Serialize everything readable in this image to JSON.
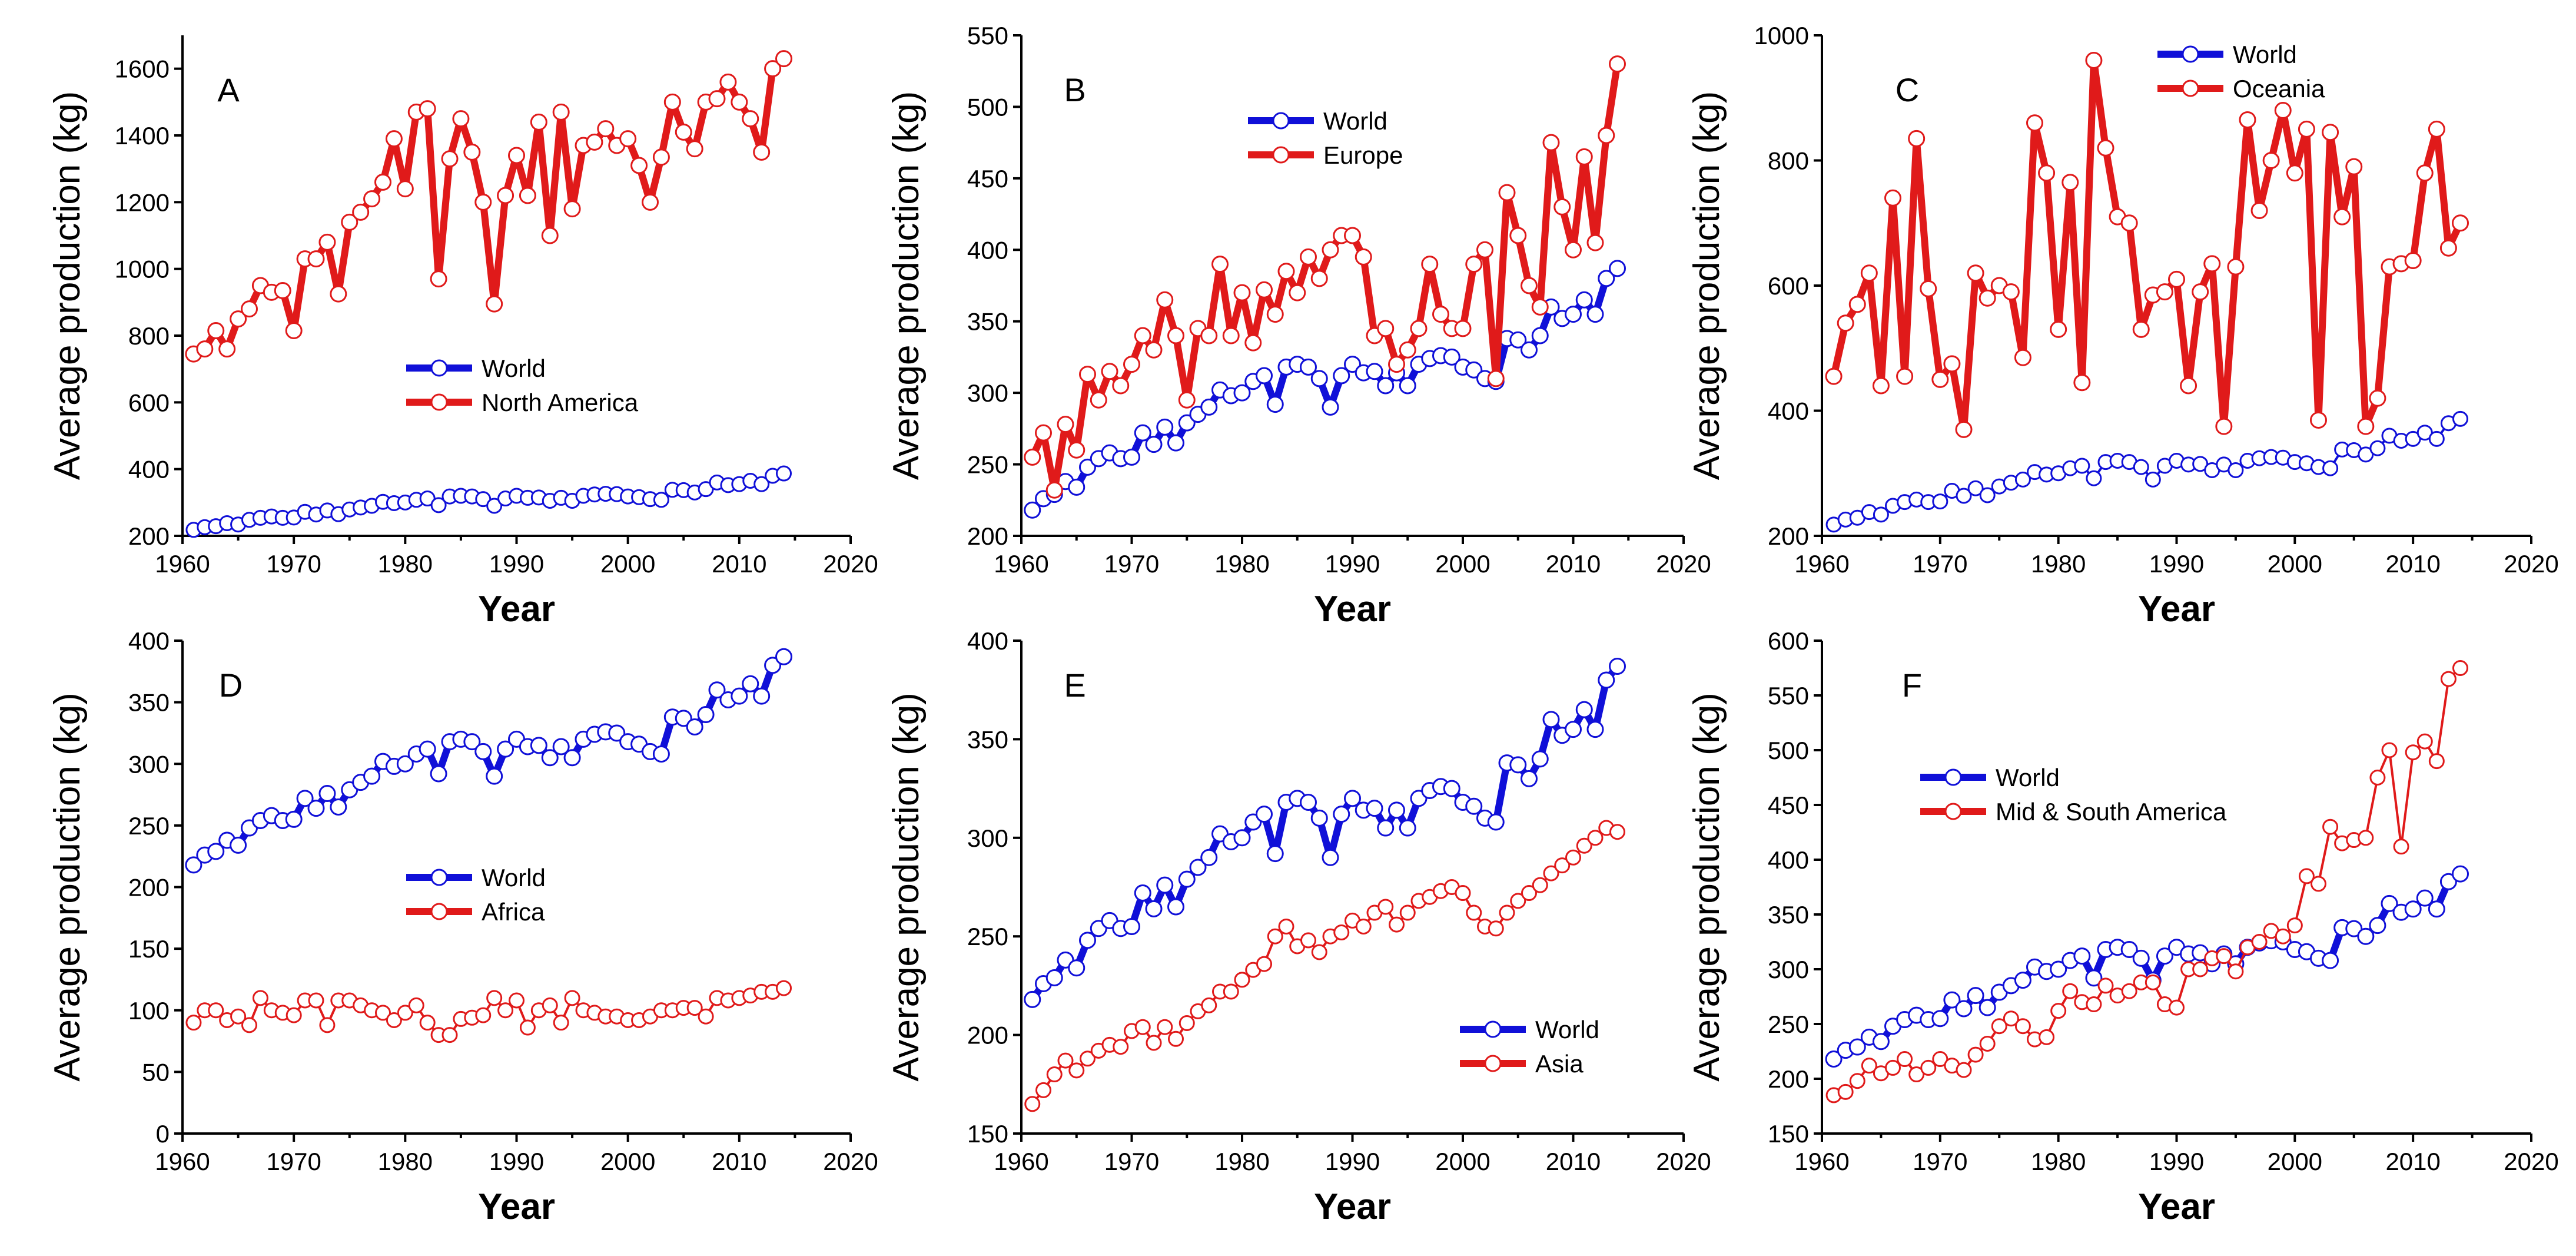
{
  "colors": {
    "world": "#1010d8",
    "region": "#e01a1a"
  },
  "x_label": "Year",
  "y_label": "Average production (kg)",
  "world_series": {
    "name": "World",
    "years": [
      1961,
      1962,
      1963,
      1964,
      1965,
      1966,
      1967,
      1968,
      1969,
      1970,
      1971,
      1972,
      1973,
      1974,
      1975,
      1976,
      1977,
      1978,
      1979,
      1980,
      1981,
      1982,
      1983,
      1984,
      1985,
      1986,
      1987,
      1988,
      1989,
      1990,
      1991,
      1992,
      1993,
      1994,
      1995,
      1996,
      1997,
      1998,
      1999,
      2000,
      2001,
      2002,
      2003,
      2004,
      2005,
      2006,
      2007,
      2008,
      2009,
      2010,
      2011,
      2012,
      2013,
      2014
    ],
    "values": [
      218,
      226,
      229,
      238,
      234,
      248,
      254,
      258,
      254,
      255,
      272,
      264,
      276,
      265,
      279,
      285,
      290,
      302,
      298,
      300,
      308,
      312,
      292,
      318,
      320,
      318,
      310,
      290,
      312,
      320,
      314,
      315,
      305,
      314,
      305,
      320,
      324,
      326,
      325,
      318,
      316,
      310,
      308,
      338,
      337,
      330,
      340,
      360,
      352,
      355,
      365,
      355,
      380,
      387
    ]
  },
  "chart_data": [
    {
      "type": "line",
      "panel": "A",
      "x_ticks": [
        "1960",
        "1970",
        "1980",
        "1990",
        "2000",
        "2010",
        "2020"
      ],
      "xlim": [
        1960,
        2020
      ],
      "ylim": [
        200,
        1700
      ],
      "y_ticks": [
        "200",
        "400",
        "600",
        "800",
        "1000",
        "1200",
        "1400",
        "1600"
      ],
      "legend": [
        "World",
        "North America"
      ],
      "legend_position": "center-left",
      "series": [
        {
          "name": "World",
          "color_key": "world",
          "style": "thin",
          "values_ref": "world"
        },
        {
          "name": "North America",
          "color_key": "region",
          "style": "thick",
          "years": [
            1961,
            1962,
            1963,
            1964,
            1965,
            1966,
            1967,
            1968,
            1969,
            1970,
            1971,
            1972,
            1973,
            1974,
            1975,
            1976,
            1977,
            1978,
            1979,
            1980,
            1981,
            1982,
            1983,
            1984,
            1985,
            1986,
            1987,
            1988,
            1989,
            1990,
            1991,
            1992,
            1993,
            1994,
            1995,
            1996,
            1997,
            1998,
            1999,
            2000,
            2001,
            2002,
            2003,
            2004,
            2005,
            2006,
            2007,
            2008,
            2009,
            2010,
            2011,
            2012,
            2013,
            2014
          ],
          "values": [
            745,
            760,
            815,
            760,
            850,
            880,
            950,
            930,
            935,
            815,
            1030,
            1030,
            1080,
            925,
            1140,
            1170,
            1210,
            1260,
            1390,
            1240,
            1470,
            1480,
            970,
            1330,
            1450,
            1350,
            1200,
            895,
            1220,
            1340,
            1220,
            1440,
            1100,
            1470,
            1180,
            1370,
            1380,
            1420,
            1370,
            1390,
            1310,
            1200,
            1335,
            1500,
            1410,
            1360,
            1500,
            1510,
            1560,
            1500,
            1450,
            1350,
            1600,
            1630
          ]
        }
      ]
    },
    {
      "type": "line",
      "panel": "B",
      "x_ticks": [
        "1960",
        "1970",
        "1980",
        "1990",
        "2000",
        "2010",
        "2020"
      ],
      "xlim": [
        1960,
        2020
      ],
      "ylim": [
        200,
        550
      ],
      "y_ticks": [
        "200",
        "250",
        "300",
        "350",
        "400",
        "450",
        "500",
        "550"
      ],
      "legend": [
        "World",
        "Europe"
      ],
      "legend_position": "top-center",
      "series": [
        {
          "name": "World",
          "color_key": "world",
          "style": "thick",
          "values_ref": "world"
        },
        {
          "name": "Europe",
          "color_key": "region",
          "style": "thick",
          "years": [
            1961,
            1962,
            1963,
            1964,
            1965,
            1966,
            1967,
            1968,
            1969,
            1970,
            1971,
            1972,
            1973,
            1974,
            1975,
            1976,
            1977,
            1978,
            1979,
            1980,
            1981,
            1982,
            1983,
            1984,
            1985,
            1986,
            1987,
            1988,
            1989,
            1990,
            1991,
            1992,
            1993,
            1994,
            1995,
            1996,
            1997,
            1998,
            1999,
            2000,
            2001,
            2002,
            2003,
            2004,
            2005,
            2006,
            2007,
            2008,
            2009,
            2010,
            2011,
            2012,
            2013,
            2014
          ],
          "values": [
            255,
            272,
            232,
            278,
            260,
            313,
            295,
            315,
            305,
            320,
            340,
            330,
            365,
            340,
            295,
            345,
            340,
            390,
            340,
            370,
            335,
            372,
            355,
            385,
            370,
            395,
            380,
            400,
            410,
            410,
            395,
            340,
            345,
            320,
            330,
            345,
            390,
            355,
            345,
            345,
            390,
            400,
            310,
            440,
            410,
            375,
            360,
            475,
            430,
            400,
            465,
            405,
            480,
            530
          ]
        }
      ]
    },
    {
      "type": "line",
      "panel": "C",
      "x_ticks": [
        "1960",
        "1970",
        "1980",
        "1990",
        "2000",
        "2010",
        "2020"
      ],
      "xlim": [
        1960,
        2020
      ],
      "ylim": [
        200,
        1000
      ],
      "y_ticks": [
        "200",
        "400",
        "600",
        "800",
        "1000"
      ],
      "legend": [
        "World",
        "Oceania"
      ],
      "legend_position": "top-center",
      "series": [
        {
          "name": "World",
          "color_key": "world",
          "style": "thin",
          "values_ref": "world"
        },
        {
          "name": "Oceania",
          "color_key": "region",
          "style": "thick",
          "years": [
            1961,
            1962,
            1963,
            1964,
            1965,
            1966,
            1967,
            1968,
            1969,
            1970,
            1971,
            1972,
            1973,
            1974,
            1975,
            1976,
            1977,
            1978,
            1979,
            1980,
            1981,
            1982,
            1983,
            1984,
            1985,
            1986,
            1987,
            1988,
            1989,
            1990,
            1991,
            1992,
            1993,
            1994,
            1995,
            1996,
            1997,
            1998,
            1999,
            2000,
            2001,
            2002,
            2003,
            2004,
            2005,
            2006,
            2007,
            2008,
            2009,
            2010,
            2011,
            2012,
            2013,
            2014
          ],
          "values": [
            455,
            540,
            570,
            620,
            440,
            740,
            455,
            835,
            595,
            450,
            475,
            370,
            620,
            580,
            600,
            590,
            485,
            860,
            780,
            530,
            765,
            445,
            960,
            820,
            710,
            700,
            530,
            585,
            590,
            610,
            440,
            590,
            635,
            375,
            630,
            865,
            720,
            800,
            880,
            780,
            850,
            385,
            845,
            710,
            790,
            375,
            420,
            630,
            635,
            640,
            780,
            850,
            660,
            700
          ]
        }
      ]
    },
    {
      "type": "line",
      "panel": "D",
      "x_ticks": [
        "1960",
        "1970",
        "1980",
        "1990",
        "2000",
        "2010",
        "2020"
      ],
      "xlim": [
        1960,
        2020
      ],
      "ylim": [
        0,
        400
      ],
      "y_ticks": [
        "0",
        "50",
        "100",
        "150",
        "200",
        "250",
        "300",
        "350",
        "400"
      ],
      "legend": [
        "World",
        "Africa"
      ],
      "legend_position": "center-left",
      "series": [
        {
          "name": "World",
          "color_key": "world",
          "style": "thick",
          "values_ref": "world"
        },
        {
          "name": "Africa",
          "color_key": "region",
          "style": "thin",
          "years": [
            1961,
            1962,
            1963,
            1964,
            1965,
            1966,
            1967,
            1968,
            1969,
            1970,
            1971,
            1972,
            1973,
            1974,
            1975,
            1976,
            1977,
            1978,
            1979,
            1980,
            1981,
            1982,
            1983,
            1984,
            1985,
            1986,
            1987,
            1988,
            1989,
            1990,
            1991,
            1992,
            1993,
            1994,
            1995,
            1996,
            1997,
            1998,
            1999,
            2000,
            2001,
            2002,
            2003,
            2004,
            2005,
            2006,
            2007,
            2008,
            2009,
            2010,
            2011,
            2012,
            2013,
            2014
          ],
          "values": [
            90,
            100,
            100,
            92,
            95,
            88,
            110,
            100,
            98,
            96,
            108,
            108,
            88,
            108,
            108,
            104,
            100,
            98,
            92,
            98,
            104,
            90,
            80,
            80,
            93,
            94,
            96,
            110,
            100,
            108,
            86,
            100,
            104,
            90,
            110,
            100,
            98,
            95,
            95,
            92,
            92,
            95,
            100,
            100,
            102,
            102,
            95,
            110,
            108,
            110,
            112,
            115,
            115,
            118
          ]
        }
      ]
    },
    {
      "type": "line",
      "panel": "E",
      "x_ticks": [
        "1960",
        "1970",
        "1980",
        "1990",
        "2000",
        "2010",
        "2020"
      ],
      "xlim": [
        1960,
        2020
      ],
      "ylim": [
        150,
        400
      ],
      "y_ticks": [
        "150",
        "200",
        "250",
        "300",
        "350",
        "400"
      ],
      "legend": [
        "World",
        "Asia"
      ],
      "legend_position": "bottom-right",
      "series": [
        {
          "name": "World",
          "color_key": "world",
          "style": "thick",
          "values_ref": "world"
        },
        {
          "name": "Asia",
          "color_key": "region",
          "style": "thin",
          "years": [
            1961,
            1962,
            1963,
            1964,
            1965,
            1966,
            1967,
            1968,
            1969,
            1970,
            1971,
            1972,
            1973,
            1974,
            1975,
            1976,
            1977,
            1978,
            1979,
            1980,
            1981,
            1982,
            1983,
            1984,
            1985,
            1986,
            1987,
            1988,
            1989,
            1990,
            1991,
            1992,
            1993,
            1994,
            1995,
            1996,
            1997,
            1998,
            1999,
            2000,
            2001,
            2002,
            2003,
            2004,
            2005,
            2006,
            2007,
            2008,
            2009,
            2010,
            2011,
            2012,
            2013,
            2014
          ],
          "values": [
            165,
            172,
            180,
            187,
            182,
            188,
            192,
            195,
            194,
            202,
            204,
            196,
            204,
            198,
            206,
            212,
            215,
            222,
            222,
            228,
            233,
            236,
            250,
            255,
            245,
            248,
            242,
            250,
            252,
            258,
            255,
            262,
            265,
            256,
            262,
            268,
            270,
            273,
            275,
            272,
            262,
            255,
            254,
            262,
            268,
            272,
            276,
            282,
            286,
            290,
            296,
            300,
            305,
            303
          ]
        }
      ]
    },
    {
      "type": "line",
      "panel": "F",
      "x_ticks": [
        "1960",
        "1970",
        "1980",
        "1990",
        "2000",
        "2010",
        "2020"
      ],
      "xlim": [
        1960,
        2020
      ],
      "ylim": [
        150,
        600
      ],
      "y_ticks": [
        "150",
        "200",
        "250",
        "300",
        "350",
        "400",
        "450",
        "500",
        "550",
        "600"
      ],
      "legend": [
        "World",
        "Mid & South America"
      ],
      "legend_position": "top-left",
      "series": [
        {
          "name": "World",
          "color_key": "world",
          "style": "thick",
          "values_ref": "world"
        },
        {
          "name": "Mid & South America",
          "color_key": "region",
          "style": "thin",
          "years": [
            1961,
            1962,
            1963,
            1964,
            1965,
            1966,
            1967,
            1968,
            1969,
            1970,
            1971,
            1972,
            1973,
            1974,
            1975,
            1976,
            1977,
            1978,
            1979,
            1980,
            1981,
            1982,
            1983,
            1984,
            1985,
            1986,
            1987,
            1988,
            1989,
            1990,
            1991,
            1992,
            1993,
            1994,
            1995,
            1996,
            1997,
            1998,
            1999,
            2000,
            2001,
            2002,
            2003,
            2004,
            2005,
            2006,
            2007,
            2008,
            2009,
            2010,
            2011,
            2012,
            2013,
            2014
          ],
          "values": [
            185,
            188,
            198,
            212,
            205,
            210,
            218,
            204,
            210,
            218,
            212,
            208,
            222,
            232,
            248,
            255,
            248,
            236,
            238,
            262,
            280,
            270,
            268,
            285,
            276,
            280,
            288,
            288,
            268,
            265,
            300,
            300,
            310,
            312,
            298,
            320,
            325,
            335,
            330,
            340,
            385,
            378,
            430,
            415,
            418,
            420,
            475,
            500,
            412,
            498,
            508,
            490,
            565,
            575
          ]
        }
      ]
    }
  ],
  "panels": [
    {
      "letter": "A",
      "legend": [
        "World",
        "North America"
      ]
    },
    {
      "letter": "B",
      "legend": [
        "World",
        "Europe"
      ]
    },
    {
      "letter": "C",
      "legend": [
        "World",
        "Oceania"
      ]
    },
    {
      "letter": "D",
      "legend": [
        "World",
        "Africa"
      ]
    },
    {
      "letter": "E",
      "legend": [
        "World",
        "Asia"
      ]
    },
    {
      "letter": "F",
      "legend": [
        "World",
        "Mid & South America"
      ]
    }
  ]
}
